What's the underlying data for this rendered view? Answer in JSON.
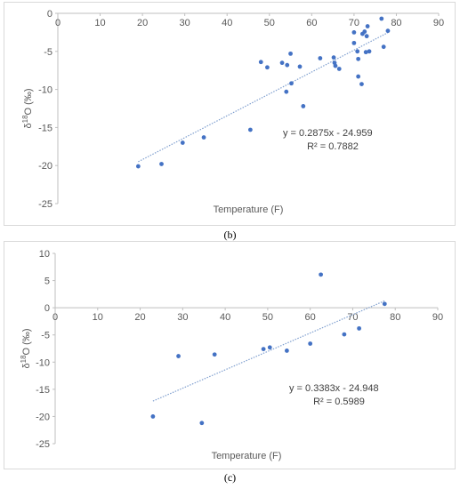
{
  "captions": [
    "(b)",
    "(c)"
  ],
  "chart_data": [
    {
      "type": "scatter",
      "panel": "b",
      "title": "",
      "xlabel": "Temperature  (F)",
      "ylabel_sup": "18",
      "ylabel_pre": "δ",
      "ylabel_post": "O (‰)",
      "xlim": [
        0,
        90
      ],
      "ylim": [
        -25,
        0
      ],
      "xticks": [
        0,
        10,
        20,
        30,
        40,
        50,
        60,
        70,
        80,
        90
      ],
      "yticks": [
        0,
        -5,
        -10,
        -15,
        -20,
        -25
      ],
      "x_axis_position": "top",
      "grid": false,
      "point_color": "#4472c4",
      "trend_color": "#7f9fcf",
      "points": [
        [
          19,
          -20.1
        ],
        [
          24.5,
          -19.8
        ],
        [
          29.5,
          -17
        ],
        [
          34.5,
          -16.3
        ],
        [
          45.5,
          -15.3
        ],
        [
          48,
          -6.4
        ],
        [
          49.5,
          -7.1
        ],
        [
          53,
          -6.5
        ],
        [
          54,
          -10.3
        ],
        [
          54.2,
          -6.8
        ],
        [
          55,
          -5.3
        ],
        [
          55.2,
          -9.2
        ],
        [
          57.2,
          -7
        ],
        [
          58,
          -12.2
        ],
        [
          62,
          -5.9
        ],
        [
          65.2,
          -5.8
        ],
        [
          65.4,
          -6.5
        ],
        [
          65.6,
          -6.9
        ],
        [
          66.5,
          -7.3
        ],
        [
          70,
          -3.9
        ],
        [
          70,
          -2.5
        ],
        [
          70.8,
          -5
        ],
        [
          71,
          -8.3
        ],
        [
          71,
          -6
        ],
        [
          71.8,
          -9.3
        ],
        [
          72,
          -2.7
        ],
        [
          72.5,
          -2.4
        ],
        [
          72.8,
          -5.1
        ],
        [
          73,
          -3
        ],
        [
          73.2,
          -1.7
        ],
        [
          73.6,
          -5
        ],
        [
          76.5,
          -0.7
        ],
        [
          77,
          -4.4
        ],
        [
          78,
          -2.3
        ]
      ],
      "trendline": {
        "slope": 0.2875,
        "intercept": -24.959,
        "x_range": [
          19,
          78
        ]
      },
      "equation": "y = 0.2875x - 24.959",
      "r2": "R² = 0.7882"
    },
    {
      "type": "scatter",
      "panel": "c",
      "title": "",
      "xlabel": "Temperature  (F)",
      "ylabel_sup": "18",
      "ylabel_pre": "δ",
      "ylabel_post": "O (‰)",
      "xlim": [
        0,
        90
      ],
      "ylim": [
        -25,
        10
      ],
      "xticks": [
        0,
        10,
        20,
        30,
        40,
        50,
        60,
        70,
        80,
        90
      ],
      "yticks": [
        10,
        5,
        0,
        -5,
        -10,
        -15,
        -20,
        -25
      ],
      "x_axis_position": "zero",
      "grid": false,
      "point_color": "#4472c4",
      "trend_color": "#7f9fcf",
      "points": [
        [
          23,
          -20
        ],
        [
          29,
          -8.9
        ],
        [
          34.5,
          -21.2
        ],
        [
          37.5,
          -8.6
        ],
        [
          49,
          -7.6
        ],
        [
          50.5,
          -7.3
        ],
        [
          54.5,
          -7.9
        ],
        [
          60,
          -6.6
        ],
        [
          62.5,
          6.1
        ],
        [
          68,
          -4.9
        ],
        [
          71.5,
          -3.8
        ],
        [
          77.5,
          0.7
        ]
      ],
      "trendline": {
        "slope": 0.3383,
        "intercept": -24.948,
        "x_range": [
          23,
          77.5
        ]
      },
      "equation": "y = 0.3383x - 24.948",
      "r2": "R² = 0.5989"
    }
  ]
}
